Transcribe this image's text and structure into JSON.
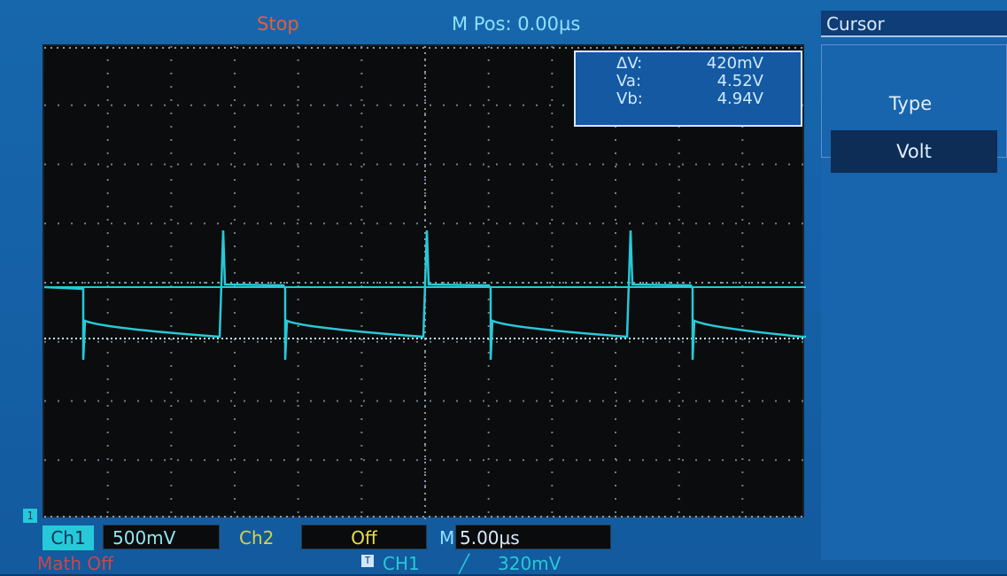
{
  "header": {
    "run_status": "Stop",
    "m_pos": "M Pos: 0.00µs"
  },
  "menu": {
    "title": "Cursor",
    "type_label": "Type",
    "type_value": "Volt"
  },
  "cursor_readout": {
    "rows": [
      {
        "label": "ΔV:",
        "value": "420mV"
      },
      {
        "label": "Va:",
        "value": "4.52V"
      },
      {
        "label": "Vb:",
        "value": "4.94V"
      }
    ]
  },
  "bottom": {
    "ch1_marker": "1",
    "ch1_label": "Ch1",
    "ch1_scale": "500mV",
    "ch2_label": "Ch2",
    "ch2_scale": "Off",
    "timebase_prefix": "M",
    "timebase": "5.00µs",
    "math_status": "Math Off",
    "trigger_icon": "T",
    "trigger_source": "CH1",
    "trigger_slope": "╱",
    "trigger_level": "320mV"
  },
  "colors": {
    "trace": "#27c9d8",
    "screen_bg": "#1767ad",
    "stop_text": "#e0603c",
    "ch2": "#d7d24a"
  },
  "icons": {
    "trigger_position": "triangle-down-marker",
    "trigger_slope": "rising-edge-icon"
  }
}
